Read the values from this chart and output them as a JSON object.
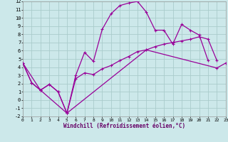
{
  "bg_color": "#cce8ea",
  "line_color": "#990099",
  "grid_color": "#aacccc",
  "xlabel": "Windchill (Refroidissement éolien,°C)",
  "ylim": [
    -2,
    12
  ],
  "xlim": [
    0,
    23
  ],
  "yticks": [
    -2,
    -1,
    0,
    1,
    2,
    3,
    4,
    5,
    6,
    7,
    8,
    9,
    10,
    11,
    12
  ],
  "xticks": [
    0,
    1,
    2,
    3,
    4,
    5,
    6,
    7,
    8,
    9,
    10,
    11,
    12,
    13,
    14,
    15,
    16,
    17,
    18,
    19,
    20,
    21,
    22,
    23
  ],
  "line1_x": [
    0,
    1,
    2,
    3,
    4,
    5,
    6,
    7,
    8,
    9,
    10,
    11,
    12,
    13,
    14,
    15,
    16,
    17,
    18,
    19,
    20,
    21
  ],
  "line1_y": [
    4.5,
    2.1,
    1.2,
    1.9,
    1.0,
    -1.6,
    3.0,
    5.8,
    4.7,
    8.6,
    10.5,
    11.5,
    11.8,
    12.0,
    10.7,
    8.5,
    8.5,
    6.8,
    9.2,
    8.5,
    7.9,
    4.8
  ],
  "line2_x": [
    0,
    1,
    2,
    3,
    4,
    5,
    6,
    7,
    8,
    9,
    10,
    11,
    12,
    13,
    14,
    15,
    16,
    17,
    18,
    19,
    20,
    21,
    22,
    23
  ],
  "line2_y": [
    4.5,
    2.1,
    1.2,
    1.9,
    1.0,
    -1.6,
    2.6,
    3.3,
    3.1,
    3.8,
    4.2,
    4.8,
    5.3,
    5.9,
    6.1,
    6.5,
    6.8,
    7.0,
    7.2,
    7.4,
    7.7,
    7.4,
    4.8,
    null
  ],
  "line3_x": [
    0,
    2,
    5,
    14,
    22,
    23
  ],
  "line3_y": [
    4.5,
    1.2,
    -1.6,
    6.1,
    3.9,
    4.5
  ]
}
